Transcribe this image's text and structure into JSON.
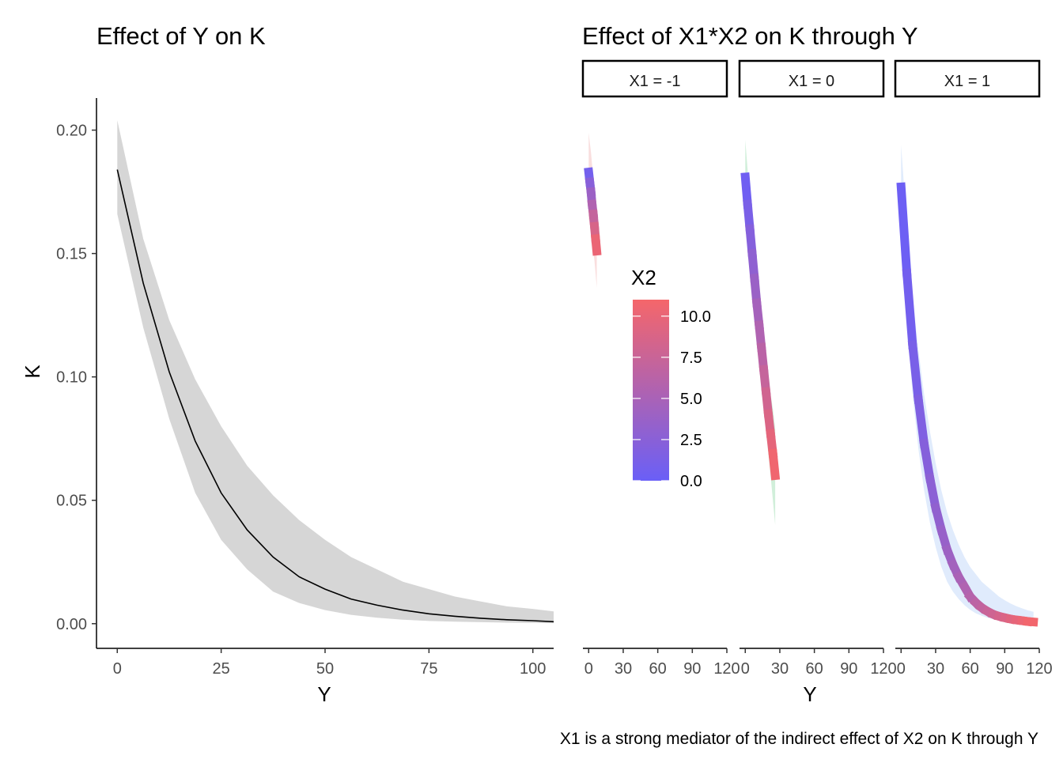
{
  "chart_data": [
    {
      "type": "line",
      "title": "Effect of Y on K",
      "xlabel": "Y",
      "ylabel": "K",
      "xlim": [
        -5,
        105
      ],
      "ylim": [
        -0.01,
        0.213
      ],
      "x_ticks": [
        0,
        25,
        50,
        75,
        100
      ],
      "x_tick_labels": [
        "0",
        "25",
        "50",
        "75",
        "100"
      ],
      "y_ticks": [
        0,
        0.05,
        0.1,
        0.15,
        0.2
      ],
      "y_tick_labels": [
        "0.00",
        "0.05",
        "0.10",
        "0.15",
        "0.20"
      ],
      "grid": false,
      "series": [
        {
          "x": [
            0,
            6.25,
            12.5,
            18.75,
            25,
            31.25,
            37.5,
            43.75,
            50,
            56.25,
            62.5,
            68.75,
            75,
            81.25,
            87.5,
            93.75,
            100,
            105
          ],
          "values": [
            0.184,
            0.138,
            0.102,
            0.074,
            0.053,
            0.038,
            0.027,
            0.019,
            0.014,
            0.01,
            0.0075,
            0.0055,
            0.004,
            0.003,
            0.0022,
            0.0016,
            0.0012,
            0.0008
          ],
          "lower": [
            0.166,
            0.12,
            0.083,
            0.053,
            0.034,
            0.022,
            0.013,
            0.0084,
            0.0055,
            0.0036,
            0.0024,
            0.0016,
            0.0011,
            0.0008,
            0.0006,
            0.0004,
            0.0003,
            0.0002
          ],
          "upper": [
            0.204,
            0.156,
            0.123,
            0.099,
            0.08,
            0.064,
            0.052,
            0.042,
            0.034,
            0.027,
            0.022,
            0.017,
            0.014,
            0.011,
            0.009,
            0.007,
            0.006,
            0.005
          ],
          "color": "#000000",
          "band_color": "#d6d6d6"
        }
      ]
    },
    {
      "type": "line",
      "title": "Effect of X1*X2 on K through Y",
      "xlabel": "Y",
      "xlim": [
        -5,
        120
      ],
      "x_ticks": [
        0,
        30,
        60,
        90,
        120
      ],
      "x_tick_labels": [
        "0",
        "30",
        "60",
        "90",
        "120"
      ],
      "grid": false,
      "colorbar": {
        "title": "X2",
        "min": 0,
        "max": 11,
        "ticks": [
          0,
          2.5,
          5,
          7.5,
          10
        ],
        "tick_labels": [
          "0.0",
          "2.5",
          "5.0",
          "7.5",
          "10.0"
        ],
        "low_color": "#6a5ff7",
        "high_color": "#f5666a"
      },
      "facets": [
        {
          "label": "X1 = -1",
          "band_color": "#f8d8d8",
          "x": [
            0,
            1,
            2,
            3,
            4,
            5,
            6,
            7
          ],
          "values": [
            0.183,
            0.179,
            0.175,
            0.17,
            0.166,
            0.161,
            0.156,
            0.151
          ],
          "lower": [
            0.164,
            0.162,
            0.158,
            0.155,
            0.151,
            0.147,
            0.142,
            0.136
          ],
          "upper": [
            0.199,
            0.195,
            0.191,
            0.186,
            0.181,
            0.176,
            0.17,
            0.164
          ],
          "x2": [
            0,
            1.6,
            3.1,
            4.7,
            6.3,
            7.9,
            9.4,
            11
          ]
        },
        {
          "label": "X1 = 0",
          "band_color": "#c9ecd3",
          "x": [
            0,
            2,
            4,
            6,
            8,
            10,
            12,
            14,
            16,
            18,
            20,
            22,
            24,
            26
          ],
          "values": [
            0.181,
            0.17,
            0.16,
            0.15,
            0.14,
            0.13,
            0.121,
            0.112,
            0.103,
            0.094,
            0.085,
            0.077,
            0.069,
            0.06
          ],
          "lower": [
            0.166,
            0.157,
            0.147,
            0.137,
            0.127,
            0.117,
            0.107,
            0.097,
            0.087,
            0.078,
            0.069,
            0.06,
            0.05,
            0.04
          ],
          "upper": [
            0.196,
            0.184,
            0.173,
            0.163,
            0.153,
            0.143,
            0.134,
            0.125,
            0.116,
            0.108,
            0.1,
            0.093,
            0.087,
            0.079
          ],
          "x2": [
            0,
            0.85,
            1.7,
            2.5,
            3.4,
            4.2,
            5.1,
            5.9,
            6.8,
            7.6,
            8.5,
            9.3,
            10.2,
            11
          ]
        },
        {
          "label": "X1 = 1",
          "band_color": "#dbe8fb",
          "x": [
            0,
            5,
            10,
            15,
            20,
            25,
            30,
            35,
            40,
            45,
            50,
            55,
            60,
            65,
            70,
            75,
            80,
            85,
            90,
            95,
            100,
            105,
            110,
            115
          ],
          "values": [
            0.177,
            0.142,
            0.113,
            0.091,
            0.073,
            0.059,
            0.047,
            0.038,
            0.03,
            0.024,
            0.019,
            0.015,
            0.011,
            0.0085,
            0.0065,
            0.005,
            0.0038,
            0.003,
            0.0024,
            0.0019,
            0.0015,
            0.0012,
            0.0009,
            0.0007
          ],
          "lower": [
            0.16,
            0.123,
            0.093,
            0.071,
            0.054,
            0.041,
            0.031,
            0.023,
            0.017,
            0.013,
            0.01,
            0.0075,
            0.0056,
            0.0042,
            0.0032,
            0.0024,
            0.0018,
            0.0014,
            0.0011,
            0.0008,
            0.0006,
            0.0005,
            0.0004,
            0.0003
          ],
          "upper": [
            0.194,
            0.161,
            0.133,
            0.111,
            0.093,
            0.078,
            0.065,
            0.054,
            0.045,
            0.038,
            0.032,
            0.027,
            0.023,
            0.02,
            0.017,
            0.015,
            0.013,
            0.011,
            0.0095,
            0.0082,
            0.0071,
            0.0062,
            0.0054,
            0.0048
          ],
          "x2": [
            0,
            0.48,
            0.96,
            1.4,
            1.9,
            2.4,
            2.9,
            3.3,
            3.8,
            4.3,
            4.8,
            5.3,
            5.7,
            6.2,
            6.7,
            7.2,
            7.7,
            8.1,
            8.6,
            9.1,
            9.6,
            10.0,
            10.5,
            11
          ]
        }
      ]
    }
  ],
  "caption": "X1 is a strong mediator of the indirect effect of X2 on K through Y"
}
